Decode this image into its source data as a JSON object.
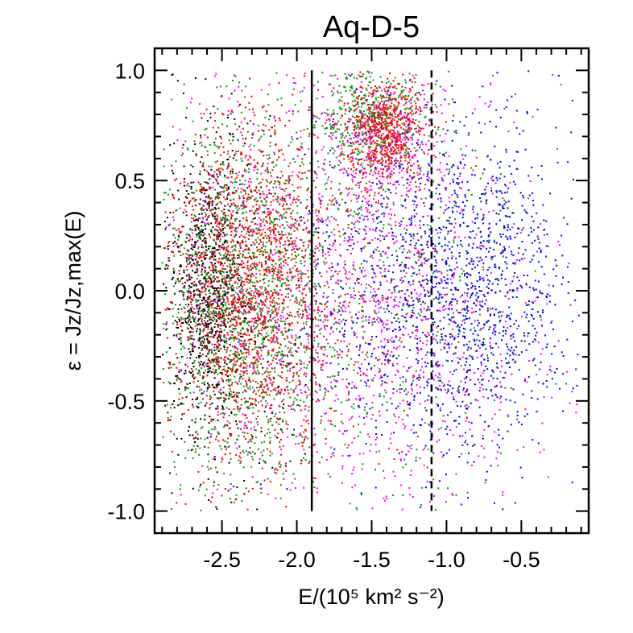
{
  "chart_data": {
    "type": "scatter",
    "title": "Aq-D-5",
    "xlabel": "E/(10⁵ km² s⁻²)",
    "ylabel": "ε = Jz/Jz,max(E)",
    "xlim": [
      -2.95,
      -0.05
    ],
    "ylim": [
      -1.1,
      1.1
    ],
    "x_ticks": [
      -2.5,
      -2.0,
      -1.5,
      -1.0,
      -0.5
    ],
    "x_tick_labels": [
      "-2.5",
      "-2.0",
      "-1.5",
      "-1.0",
      "-0.5"
    ],
    "y_ticks": [
      -1.0,
      -0.5,
      0.0,
      0.5,
      1.0
    ],
    "y_tick_labels": [
      "-1.0",
      "-0.5",
      "0.0",
      "0.5",
      "1.0"
    ],
    "grid": false,
    "legend": "none",
    "vertical_lines": [
      {
        "x": -1.9,
        "style": "solid",
        "y_range": [
          -1.0,
          1.0
        ]
      },
      {
        "x": -1.1,
        "style": "dashed",
        "y_range": [
          -1.0,
          1.0
        ]
      }
    ],
    "series": [
      {
        "color": "#000000",
        "n": 1200,
        "clusters": [
          {
            "x": -2.6,
            "y": 0.0,
            "sx": 0.12,
            "sy": 0.32,
            "w": 0.75
          },
          {
            "x": -2.4,
            "y": -0.1,
            "sx": 0.3,
            "sy": 0.5,
            "w": 0.25
          }
        ]
      },
      {
        "color": "#00a000",
        "n": 2400,
        "clusters": [
          {
            "x": -2.35,
            "y": -0.05,
            "sx": 0.3,
            "sy": 0.42,
            "w": 0.55
          },
          {
            "x": -1.5,
            "y": 0.78,
            "sx": 0.18,
            "sy": 0.11,
            "w": 0.2
          },
          {
            "x": -1.5,
            "y": 0.0,
            "sx": 0.5,
            "sy": 0.5,
            "w": 0.25
          }
        ]
      },
      {
        "color": "#ff00ff",
        "n": 2000,
        "clusters": [
          {
            "x": -1.35,
            "y": 0.0,
            "sx": 0.55,
            "sy": 0.48,
            "w": 0.65
          },
          {
            "x": -2.3,
            "y": 0.0,
            "sx": 0.3,
            "sy": 0.5,
            "w": 0.2
          },
          {
            "x": -1.4,
            "y": 0.7,
            "sx": 0.2,
            "sy": 0.15,
            "w": 0.15
          }
        ]
      },
      {
        "color": "#0000ff",
        "n": 1500,
        "clusters": [
          {
            "x": -0.85,
            "y": 0.05,
            "sx": 0.35,
            "sy": 0.38,
            "w": 0.75
          },
          {
            "x": -1.4,
            "y": 0.0,
            "sx": 0.4,
            "sy": 0.45,
            "w": 0.25
          }
        ]
      },
      {
        "color": "#ff0000",
        "n": 2400,
        "clusters": [
          {
            "x": -2.35,
            "y": 0.0,
            "sx": 0.25,
            "sy": 0.38,
            "w": 0.6
          },
          {
            "x": -1.4,
            "y": 0.72,
            "sx": 0.13,
            "sy": 0.12,
            "w": 0.25
          },
          {
            "x": -1.9,
            "y": 0.0,
            "sx": 0.5,
            "sy": 0.5,
            "w": 0.15
          }
        ]
      }
    ]
  }
}
